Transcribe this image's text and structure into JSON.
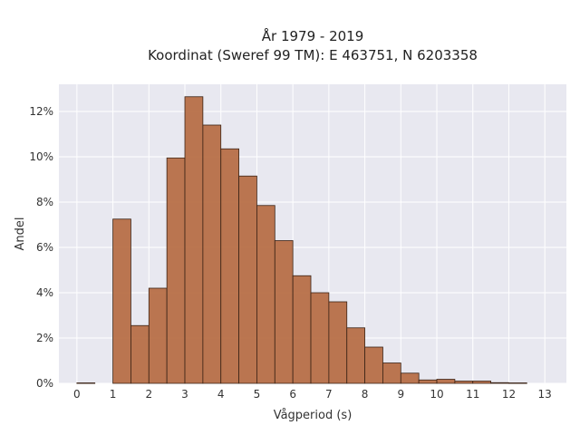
{
  "chart_data": {
    "type": "bar",
    "title": "År 1979 - 2019",
    "subtitle": "Koordinat (Sweref 99 TM): E 463751, N 6203358",
    "xlabel": "Vågperiod (s)",
    "ylabel": "Andel",
    "xlim": [
      -0.5,
      13.6
    ],
    "ylim": [
      0,
      13.2
    ],
    "x_ticks": [
      0,
      1,
      2,
      3,
      4,
      5,
      6,
      7,
      8,
      9,
      10,
      11,
      12,
      13
    ],
    "y_ticks": [
      0,
      2,
      4,
      6,
      8,
      10,
      12
    ],
    "y_tick_labels": [
      "0%",
      "2%",
      "4%",
      "6%",
      "8%",
      "10%",
      "12%"
    ],
    "grid": true,
    "bin_width": 0.5,
    "bins": [
      {
        "x": 0.0,
        "value": 0.02
      },
      {
        "x": 1.0,
        "value": 7.25
      },
      {
        "x": 1.5,
        "value": 2.55
      },
      {
        "x": 2.0,
        "value": 4.2
      },
      {
        "x": 2.5,
        "value": 9.95
      },
      {
        "x": 3.0,
        "value": 12.65
      },
      {
        "x": 3.5,
        "value": 11.4
      },
      {
        "x": 4.0,
        "value": 10.35
      },
      {
        "x": 4.5,
        "value": 9.15
      },
      {
        "x": 5.0,
        "value": 7.85
      },
      {
        "x": 5.5,
        "value": 6.3
      },
      {
        "x": 6.0,
        "value": 4.75
      },
      {
        "x": 6.5,
        "value": 4.0
      },
      {
        "x": 7.0,
        "value": 3.6
      },
      {
        "x": 7.5,
        "value": 2.45
      },
      {
        "x": 8.0,
        "value": 1.6
      },
      {
        "x": 8.5,
        "value": 0.9
      },
      {
        "x": 9.0,
        "value": 0.45
      },
      {
        "x": 9.5,
        "value": 0.15
      },
      {
        "x": 10.0,
        "value": 0.18
      },
      {
        "x": 10.5,
        "value": 0.1
      },
      {
        "x": 11.0,
        "value": 0.1
      },
      {
        "x": 11.5,
        "value": 0.03
      },
      {
        "x": 12.0,
        "value": 0.02
      }
    ],
    "colors": {
      "bar": "#b5683e",
      "edge": "#3b2417",
      "plot_bg": "#e8e8f0",
      "grid": "#ffffff"
    }
  }
}
